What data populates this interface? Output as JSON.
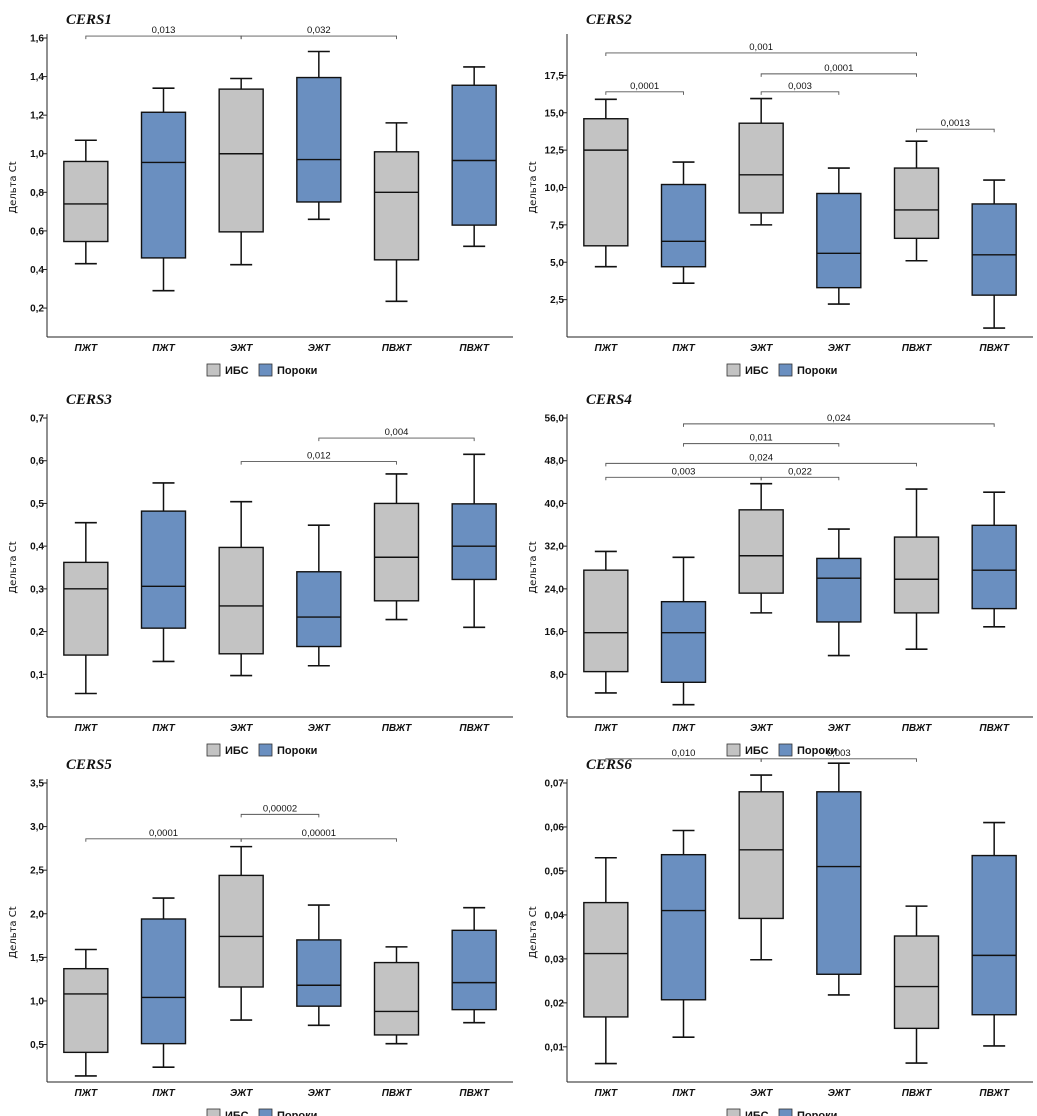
{
  "legend": {
    "items": [
      {
        "label": "ИБС",
        "color": "#c3c3c3"
      },
      {
        "label": "Пороки",
        "color": "#6a8fc0"
      }
    ]
  },
  "chart_data": [
    {
      "type": "box",
      "title": "CERS1",
      "ylabel": "Дельта Ct",
      "ylim": [
        0.05,
        1.6
      ],
      "yticks": [
        "0,2",
        "0,4",
        "0,6",
        "0,8",
        "1,0",
        "1,2",
        "1,4",
        "1,6"
      ],
      "yticks_values": [
        0.2,
        0.4,
        0.6,
        0.8,
        1.0,
        1.2,
        1.4,
        1.6
      ],
      "categories": [
        "ПЖТ",
        "ПЖТ",
        "ЭЖТ",
        "ЭЖТ",
        "ПВЖТ",
        "ПВЖТ"
      ],
      "groups": [
        "ИБС",
        "Пороки",
        "ИБС",
        "Пороки",
        "ИБС",
        "Пороки"
      ],
      "boxes": [
        {
          "min": 0.43,
          "q1": 0.545,
          "median": 0.74,
          "q3": 0.96,
          "max": 1.07
        },
        {
          "min": 0.29,
          "q1": 0.46,
          "median": 0.955,
          "q3": 1.215,
          "max": 1.34
        },
        {
          "min": 0.425,
          "q1": 0.595,
          "median": 1.0,
          "q3": 1.335,
          "max": 1.39
        },
        {
          "min": 0.66,
          "q1": 0.75,
          "median": 0.97,
          "q3": 1.395,
          "max": 1.53
        },
        {
          "min": 0.235,
          "q1": 0.45,
          "median": 0.8,
          "q3": 1.01,
          "max": 1.16
        },
        {
          "min": 0.52,
          "q1": 0.63,
          "median": 0.965,
          "q3": 1.355,
          "max": 1.45
        }
      ],
      "brackets": [
        {
          "from": 0,
          "to": 2,
          "y": 1.61,
          "label": "0,013"
        },
        {
          "from": 2,
          "to": 4,
          "y": 1.61,
          "label": "0,032"
        }
      ]
    },
    {
      "type": "box",
      "title": "CERS2",
      "ylabel": "Дельта Ct",
      "ylim": [
        0,
        20
      ],
      "yticks": [
        "2,5",
        "5,0",
        "7,5",
        "10,0",
        "12,5",
        "15,0",
        "17,5"
      ],
      "yticks_values": [
        2.5,
        5.0,
        7.5,
        10.0,
        12.5,
        15.0,
        17.5
      ],
      "categories": [
        "ПЖТ",
        "ПЖТ",
        "ЭЖТ",
        "ЭЖТ",
        "ПВЖТ",
        "ПВЖТ"
      ],
      "groups": [
        "ИБС",
        "Пороки",
        "ИБС",
        "Пороки",
        "ИБС",
        "Пороки"
      ],
      "boxes": [
        {
          "min": 4.7,
          "q1": 6.1,
          "median": 12.5,
          "q3": 14.6,
          "max": 15.9
        },
        {
          "min": 3.6,
          "q1": 4.7,
          "median": 6.4,
          "q3": 10.2,
          "max": 11.7
        },
        {
          "min": 7.5,
          "q1": 8.3,
          "median": 10.85,
          "q3": 14.3,
          "max": 15.95
        },
        {
          "min": 2.2,
          "q1": 3.3,
          "median": 5.6,
          "q3": 9.6,
          "max": 11.3
        },
        {
          "min": 5.1,
          "q1": 6.6,
          "median": 8.5,
          "q3": 11.3,
          "max": 13.1
        },
        {
          "min": 0.6,
          "q1": 2.8,
          "median": 5.5,
          "q3": 8.9,
          "max": 10.5
        }
      ],
      "brackets": [
        {
          "from": 0,
          "to": 4,
          "y": 19.0,
          "label": "0,001"
        },
        {
          "from": 2,
          "to": 4,
          "y": 17.6,
          "label": "0,0001"
        },
        {
          "from": 0,
          "to": 1,
          "y": 16.4,
          "label": "0,0001"
        },
        {
          "from": 2,
          "to": 3,
          "y": 16.4,
          "label": "0,003"
        },
        {
          "from": 4,
          "to": 5,
          "y": 13.9,
          "label": "0,0013"
        }
      ]
    },
    {
      "type": "box",
      "title": "CERS3",
      "ylabel": "Дельта Ct",
      "ylim": [
        0,
        0.7
      ],
      "yticks": [
        "0,1",
        "0,2",
        "0,3",
        "0,4",
        "0,5",
        "0,6",
        "0,7"
      ],
      "yticks_values": [
        0.1,
        0.2,
        0.3,
        0.4,
        0.5,
        0.6,
        0.7
      ],
      "categories": [
        "ПЖТ",
        "ПЖТ",
        "ЭЖТ",
        "ЭЖТ",
        "ПВЖТ",
        "ПВЖТ"
      ],
      "groups": [
        "ИБС",
        "Пороки",
        "ИБС",
        "Пороки",
        "ИБС",
        "Пороки"
      ],
      "boxes": [
        {
          "min": 0.055,
          "q1": 0.145,
          "median": 0.3,
          "q3": 0.362,
          "max": 0.455
        },
        {
          "min": 0.13,
          "q1": 0.208,
          "median": 0.306,
          "q3": 0.482,
          "max": 0.548
        },
        {
          "min": 0.097,
          "q1": 0.148,
          "median": 0.26,
          "q3": 0.397,
          "max": 0.504
        },
        {
          "min": 0.12,
          "q1": 0.165,
          "median": 0.234,
          "q3": 0.34,
          "max": 0.449
        },
        {
          "min": 0.228,
          "q1": 0.272,
          "median": 0.374,
          "q3": 0.5,
          "max": 0.569
        },
        {
          "min": 0.21,
          "q1": 0.322,
          "median": 0.4,
          "q3": 0.499,
          "max": 0.615
        }
      ],
      "brackets": [
        {
          "from": 3,
          "to": 5,
          "y": 0.653,
          "label": "0,004"
        },
        {
          "from": 2,
          "to": 4,
          "y": 0.598,
          "label": "0,012"
        }
      ]
    },
    {
      "type": "box",
      "title": "CERS4",
      "ylabel": "Дельта Ct",
      "ylim": [
        0,
        56
      ],
      "yticks": [
        "8,0",
        "16,0",
        "24,0",
        "32,0",
        "40,0",
        "48,0",
        "56,0"
      ],
      "yticks_values": [
        8,
        16,
        24,
        32,
        40,
        48,
        56
      ],
      "categories": [
        "ПЖТ",
        "ПЖТ",
        "ЭЖТ",
        "ЭЖТ",
        "ПВЖТ",
        "ПВЖТ"
      ],
      "groups": [
        "ИБС",
        "Пороки",
        "ИБС",
        "Пороки",
        "ИБС",
        "Пороки"
      ],
      "boxes": [
        {
          "min": 4.5,
          "q1": 8.5,
          "median": 15.8,
          "q3": 27.5,
          "max": 31
        },
        {
          "min": 2.3,
          "q1": 6.5,
          "median": 15.8,
          "q3": 21.6,
          "max": 29.9
        },
        {
          "min": 19.5,
          "q1": 23.2,
          "median": 30.2,
          "q3": 38.8,
          "max": 43.7
        },
        {
          "min": 11.5,
          "q1": 17.8,
          "median": 26,
          "q3": 29.7,
          "max": 35.2
        },
        {
          "min": 12.7,
          "q1": 19.5,
          "median": 25.8,
          "q3": 33.7,
          "max": 42.7
        },
        {
          "min": 16.9,
          "q1": 20.3,
          "median": 27.5,
          "q3": 35.9,
          "max": 42.1
        }
      ],
      "brackets": [
        {
          "from": 1,
          "to": 5,
          "y": 54.9,
          "label": "0,024"
        },
        {
          "from": 1,
          "to": 3,
          "y": 51.2,
          "label": "0,011"
        },
        {
          "from": 0,
          "to": 4,
          "y": 47.5,
          "label": "0,024"
        },
        {
          "from": 0,
          "to": 2,
          "y": 44.9,
          "label": "0,003"
        },
        {
          "from": 2,
          "to": 3,
          "y": 44.9,
          "label": "0,022"
        }
      ]
    },
    {
      "type": "box",
      "title": "CERS5",
      "ylabel": "Дельта Ct",
      "ylim": [
        0.07,
        3.5
      ],
      "yticks": [
        "0,5",
        "1,0",
        "1,5",
        "2,0",
        "2,5",
        "3,0",
        "3,5"
      ],
      "yticks_values": [
        0.5,
        1.0,
        1.5,
        2.0,
        2.5,
        3.0,
        3.5
      ],
      "categories": [
        "ПЖТ",
        "ПЖТ",
        "ЭЖТ",
        "ЭЖТ",
        "ПВЖТ",
        "ПВЖТ"
      ],
      "groups": [
        "ИБС",
        "Пороки",
        "ИБС",
        "Пороки",
        "ИБС",
        "Пороки"
      ],
      "boxes": [
        {
          "min": 0.14,
          "q1": 0.41,
          "median": 1.08,
          "q3": 1.37,
          "max": 1.59
        },
        {
          "min": 0.24,
          "q1": 0.51,
          "median": 1.04,
          "q3": 1.94,
          "max": 2.18
        },
        {
          "min": 0.78,
          "q1": 1.16,
          "median": 1.74,
          "q3": 2.44,
          "max": 2.77
        },
        {
          "min": 0.72,
          "q1": 0.94,
          "median": 1.18,
          "q3": 1.7,
          "max": 2.1
        },
        {
          "min": 0.51,
          "q1": 0.61,
          "median": 0.88,
          "q3": 1.44,
          "max": 1.62
        },
        {
          "min": 0.75,
          "q1": 0.9,
          "median": 1.21,
          "q3": 1.81,
          "max": 2.07
        }
      ],
      "brackets": [
        {
          "from": 2,
          "to": 3,
          "y": 3.14,
          "label": "0,00002"
        },
        {
          "from": 0,
          "to": 2,
          "y": 2.86,
          "label": "0,0001"
        },
        {
          "from": 2,
          "to": 4,
          "y": 2.86,
          "label": "0,00001"
        }
      ]
    },
    {
      "type": "box",
      "title": "CERS6",
      "ylabel": "Дельта Ct",
      "ylim": [
        0.002,
        0.07
      ],
      "yticks": [
        "0,01",
        "0,02",
        "0,03",
        "0,04",
        "0,05",
        "0,06",
        "0,07"
      ],
      "yticks_values": [
        0.01,
        0.02,
        0.03,
        0.04,
        0.05,
        0.06,
        0.07
      ],
      "categories": [
        "ПЖТ",
        "ПЖТ",
        "ЭЖТ",
        "ЭЖТ",
        "ПВЖТ",
        "ПВЖТ"
      ],
      "groups": [
        "ИБС",
        "Пороки",
        "ИБС",
        "Пороки",
        "ИБС",
        "Пороки"
      ],
      "boxes": [
        {
          "min": 0.0062,
          "q1": 0.0168,
          "median": 0.0312,
          "q3": 0.0428,
          "max": 0.053
        },
        {
          "min": 0.0122,
          "q1": 0.0207,
          "median": 0.041,
          "q3": 0.0537,
          "max": 0.0592
        },
        {
          "min": 0.0298,
          "q1": 0.0392,
          "median": 0.0548,
          "q3": 0.068,
          "max": 0.0718
        },
        {
          "min": 0.0218,
          "q1": 0.0265,
          "median": 0.051,
          "q3": 0.068,
          "max": 0.0745
        },
        {
          "min": 0.0063,
          "q1": 0.0142,
          "median": 0.0237,
          "q3": 0.0352,
          "max": 0.042
        },
        {
          "min": 0.0102,
          "q1": 0.0173,
          "median": 0.0308,
          "q3": 0.0535,
          "max": 0.061
        }
      ],
      "brackets": [
        {
          "from": 0,
          "to": 2,
          "y": 0.0755,
          "label": "0,010"
        },
        {
          "from": 2,
          "to": 4,
          "y": 0.0755,
          "label": "0,003"
        }
      ]
    }
  ]
}
